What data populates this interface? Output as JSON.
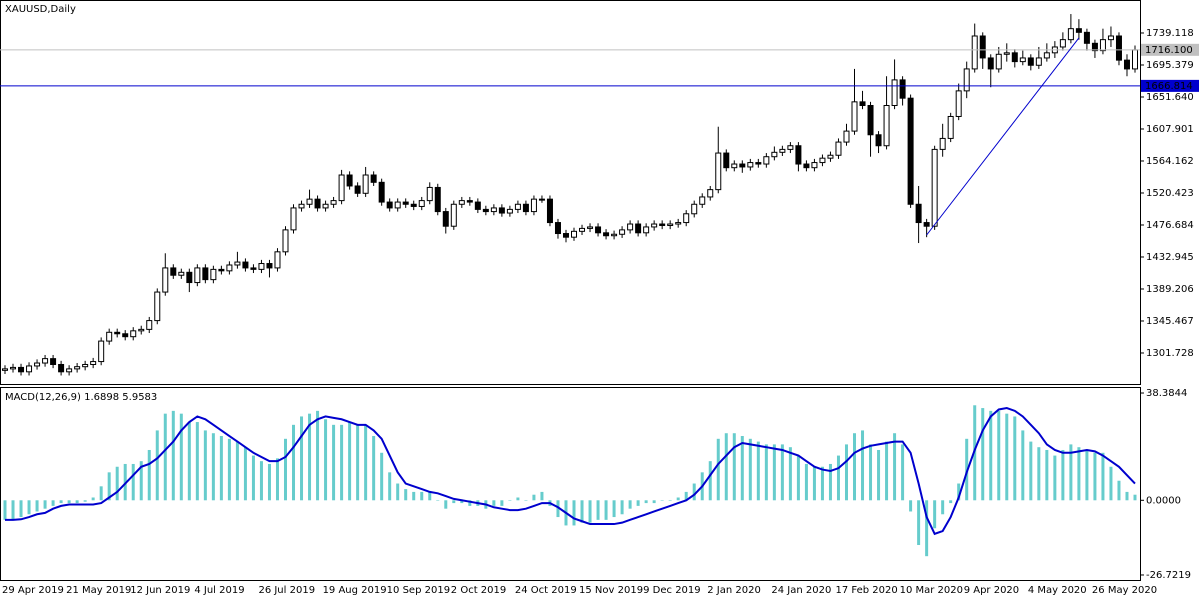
{
  "chart_data": [
    {
      "type": "candlestick",
      "title": "XAUUSD,Daily",
      "categories": [
        "29 Apr 2019",
        null,
        null,
        null,
        null,
        null,
        null,
        null,
        "21 May 2019",
        null,
        null,
        null,
        null,
        null,
        null,
        null,
        "12 Jun 2019",
        null,
        null,
        null,
        null,
        null,
        null,
        null,
        "4 Jul 2019",
        null,
        null,
        null,
        null,
        null,
        null,
        null,
        "26 Jul 2019",
        null,
        null,
        null,
        null,
        null,
        null,
        null,
        "19 Aug 2019",
        null,
        null,
        null,
        null,
        null,
        null,
        null,
        "10 Sep 2019",
        null,
        null,
        null,
        null,
        null,
        null,
        null,
        "2 Oct 2019",
        null,
        null,
        null,
        null,
        null,
        null,
        null,
        "24 Oct 2019",
        null,
        null,
        null,
        null,
        null,
        null,
        null,
        "15 Nov 2019",
        null,
        null,
        null,
        null,
        null,
        null,
        null,
        "9 Dec 2019",
        null,
        null,
        null,
        null,
        null,
        null,
        null,
        "2 Jan 2020",
        null,
        null,
        null,
        null,
        null,
        null,
        null,
        "24 Jan 2020",
        null,
        null,
        null,
        null,
        null,
        null,
        null,
        "17 Feb 2020",
        null,
        null,
        null,
        null,
        null,
        null,
        null,
        "10 Mar 2020",
        null,
        null,
        null,
        null,
        null,
        null,
        null,
        "9 Apr 2020",
        null,
        null,
        null,
        null,
        null,
        null,
        null,
        "4 May 2020",
        null,
        null,
        null,
        null,
        null,
        null,
        null,
        "26 May 2020",
        null,
        null,
        null,
        null,
        null
      ],
      "open": [
        1278,
        1280,
        1282,
        1276,
        1284,
        1288,
        1294,
        1286,
        1276,
        1280,
        1283,
        1286,
        1290,
        1318,
        1330,
        1328,
        1324,
        1332,
        1334,
        1346,
        1385,
        1418,
        1408,
        1412,
        1398,
        1418,
        1402,
        1416,
        1414,
        1422,
        1426,
        1418,
        1416,
        1424,
        1418,
        1440,
        1470,
        1500,
        1505,
        1512,
        1500,
        1505,
        1510,
        1545,
        1530,
        1520,
        1545,
        1535,
        1508,
        1500,
        1508,
        1505,
        1502,
        1510,
        1528,
        1495,
        1475,
        1505,
        1510,
        1508,
        1498,
        1495,
        1500,
        1493,
        1498,
        1505,
        1495,
        1512,
        1512,
        1480,
        1465,
        1460,
        1468,
        1472,
        1474,
        1466,
        1462,
        1464,
        1470,
        1478,
        1466,
        1474,
        1478,
        1476,
        1478,
        1480,
        1492,
        1505,
        1515,
        1525,
        1575,
        1555,
        1560,
        1556,
        1562,
        1560,
        1570,
        1576,
        1580,
        1585,
        1560,
        1555,
        1562,
        1568,
        1572,
        1590,
        1605,
        1645,
        1640,
        1600,
        1585,
        1640,
        1675,
        1650,
        1505,
        1480,
        1475,
        1580,
        1595,
        1625,
        1660,
        1690,
        1735,
        1705,
        1690,
        1710,
        1712,
        1700,
        1705,
        1695,
        1705,
        1712,
        1720,
        1730,
        1745,
        1740,
        1725,
        1715,
        1730,
        1735,
        1702,
        1690
      ],
      "high": [
        1285,
        1287,
        1287,
        1289,
        1293,
        1299,
        1299,
        1291,
        1285,
        1288,
        1291,
        1295,
        1323,
        1335,
        1335,
        1333,
        1337,
        1339,
        1351,
        1390,
        1438,
        1423,
        1417,
        1417,
        1423,
        1423,
        1421,
        1421,
        1427,
        1440,
        1431,
        1423,
        1429,
        1429,
        1445,
        1475,
        1505,
        1510,
        1525,
        1517,
        1510,
        1515,
        1552,
        1550,
        1535,
        1556,
        1550,
        1540,
        1513,
        1513,
        1513,
        1510,
        1515,
        1535,
        1533,
        1500,
        1510,
        1515,
        1515,
        1513,
        1503,
        1505,
        1505,
        1503,
        1510,
        1510,
        1517,
        1517,
        1517,
        1485,
        1470,
        1473,
        1477,
        1479,
        1479,
        1471,
        1469,
        1475,
        1483,
        1483,
        1479,
        1483,
        1483,
        1483,
        1485,
        1497,
        1510,
        1520,
        1530,
        1611,
        1580,
        1565,
        1565,
        1567,
        1567,
        1575,
        1584,
        1585,
        1590,
        1590,
        1565,
        1567,
        1573,
        1577,
        1595,
        1615,
        1690,
        1660,
        1645,
        1605,
        1680,
        1703,
        1680,
        1655,
        1530,
        1485,
        1585,
        1615,
        1630,
        1670,
        1700,
        1752,
        1740,
        1710,
        1720,
        1725,
        1717,
        1715,
        1710,
        1720,
        1725,
        1728,
        1740,
        1765,
        1758,
        1745,
        1730,
        1745,
        1748,
        1740,
        1710,
        1722
      ],
      "low": [
        1273,
        1275,
        1271,
        1271,
        1279,
        1283,
        1281,
        1271,
        1271,
        1275,
        1278,
        1281,
        1285,
        1313,
        1323,
        1319,
        1319,
        1327,
        1329,
        1341,
        1380,
        1403,
        1403,
        1385,
        1393,
        1397,
        1397,
        1409,
        1409,
        1417,
        1413,
        1411,
        1411,
        1405,
        1413,
        1435,
        1465,
        1495,
        1500,
        1495,
        1495,
        1500,
        1505,
        1525,
        1515,
        1515,
        1530,
        1503,
        1495,
        1495,
        1500,
        1497,
        1497,
        1505,
        1490,
        1465,
        1470,
        1500,
        1503,
        1493,
        1490,
        1490,
        1488,
        1488,
        1493,
        1490,
        1490,
        1507,
        1475,
        1458,
        1453,
        1455,
        1463,
        1467,
        1461,
        1457,
        1457,
        1459,
        1465,
        1461,
        1461,
        1469,
        1471,
        1471,
        1473,
        1475,
        1487,
        1500,
        1510,
        1520,
        1550,
        1550,
        1548,
        1551,
        1555,
        1555,
        1565,
        1571,
        1575,
        1550,
        1550,
        1550,
        1557,
        1563,
        1567,
        1585,
        1600,
        1635,
        1570,
        1575,
        1580,
        1635,
        1640,
        1500,
        1452,
        1460,
        1470,
        1570,
        1590,
        1620,
        1650,
        1685,
        1690,
        1665,
        1685,
        1700,
        1692,
        1695,
        1688,
        1690,
        1700,
        1705,
        1715,
        1725,
        1730,
        1715,
        1705,
        1710,
        1720,
        1695,
        1680,
        1685
      ],
      "close": [
        1280,
        1282,
        1276,
        1284,
        1288,
        1294,
        1286,
        1276,
        1280,
        1283,
        1286,
        1290,
        1318,
        1330,
        1328,
        1324,
        1332,
        1334,
        1346,
        1385,
        1418,
        1408,
        1412,
        1398,
        1418,
        1402,
        1416,
        1414,
        1422,
        1426,
        1418,
        1416,
        1424,
        1418,
        1440,
        1470,
        1500,
        1505,
        1512,
        1500,
        1505,
        1510,
        1545,
        1530,
        1520,
        1545,
        1535,
        1508,
        1500,
        1508,
        1505,
        1502,
        1510,
        1528,
        1495,
        1475,
        1505,
        1510,
        1508,
        1498,
        1495,
        1500,
        1493,
        1498,
        1505,
        1495,
        1512,
        1512,
        1480,
        1465,
        1460,
        1468,
        1472,
        1474,
        1466,
        1462,
        1464,
        1470,
        1478,
        1466,
        1474,
        1478,
        1476,
        1478,
        1480,
        1492,
        1505,
        1515,
        1525,
        1575,
        1555,
        1560,
        1556,
        1562,
        1560,
        1570,
        1576,
        1580,
        1585,
        1560,
        1555,
        1562,
        1568,
        1572,
        1590,
        1605,
        1645,
        1640,
        1600,
        1585,
        1640,
        1675,
        1650,
        1505,
        1480,
        1475,
        1580,
        1595,
        1625,
        1660,
        1690,
        1735,
        1705,
        1690,
        1710,
        1712,
        1700,
        1705,
        1695,
        1705,
        1712,
        1720,
        1730,
        1745,
        1740,
        1725,
        1715,
        1730,
        1735,
        1702,
        1690,
        1716
      ],
      "up_color": "#ffffff",
      "down_color": "#000000",
      "wick_color": "#000000",
      "ylim": [
        1260.7,
        1784.2
      ],
      "yticks": [
        1739.118,
        1695.379,
        {
          "value": 1651.64,
          "label": "1651.640"
        },
        1607.901,
        1564.162,
        1520.423,
        1476.684,
        1432.945,
        1389.206,
        1345.467,
        1301.728
      ],
      "levels": [
        {
          "value": 1716.1,
          "label": "1716.100",
          "color": "#c0c0c0"
        },
        {
          "value": 1666.814,
          "label": "1666.814",
          "color": "#0000cd"
        }
      ],
      "trendline": {
        "x": [
          115,
          134
        ],
        "y": [
          1463,
          1732.3
        ],
        "color": "#0000cd"
      }
    },
    {
      "type": "bar",
      "title": "MACD(12,26,9) 1.6898 5.9583",
      "ylim": [
        -28.52,
        40.18
      ],
      "yticks": [
        38.3844,
        {
          "value": 0,
          "label": "0.0000"
        },
        -26.7219
      ],
      "series": [
        {
          "type": "bar",
          "color": "#66cccc",
          "values": [
            -7,
            -7,
            -6,
            -5,
            -4,
            -3,
            -2,
            -1,
            -1,
            -1,
            -0.5,
            1,
            5,
            10,
            12,
            13,
            13,
            14,
            18,
            25,
            31,
            32,
            31,
            28,
            28,
            25,
            24,
            23,
            22,
            21,
            19,
            16,
            14,
            13,
            15,
            22,
            27,
            30,
            31,
            32,
            29,
            27,
            27,
            28,
            27,
            27,
            23,
            17,
            10,
            6,
            4,
            3,
            3,
            3,
            0,
            -3,
            -1,
            -1,
            -2,
            -2,
            -3,
            -2,
            -2,
            0,
            1,
            0,
            2,
            3,
            -2,
            -6,
            -9,
            -9,
            -8,
            -8,
            -7,
            -7,
            -6,
            -5,
            -3,
            -2,
            -1,
            -1,
            0,
            0,
            1,
            3,
            6,
            10,
            14,
            22,
            24,
            24,
            23,
            22,
            21,
            20,
            20,
            20,
            19,
            16,
            13,
            12,
            12,
            13,
            16,
            20,
            24,
            25,
            20,
            18,
            21,
            24,
            20,
            -4,
            -16,
            -20,
            -10,
            -5,
            -1,
            6,
            22,
            34,
            33,
            32,
            32,
            31,
            30,
            25,
            21,
            19,
            18,
            16,
            18,
            20,
            19,
            18,
            17,
            17,
            12,
            7,
            3,
            2
          ]
        },
        {
          "type": "line",
          "color": "#0000cd",
          "values": [
            -7,
            -7,
            -6.8,
            -6,
            -5,
            -4.5,
            -3,
            -2,
            -1.5,
            -1.5,
            -1.5,
            -1.5,
            -1,
            1,
            3,
            6,
            9,
            12,
            13,
            15,
            18,
            21,
            25,
            28,
            30,
            29,
            27,
            25,
            23,
            21,
            19,
            17,
            15.5,
            14,
            14,
            15.5,
            19,
            23,
            27,
            29,
            30,
            29.5,
            29,
            28,
            27,
            27,
            25,
            22,
            16,
            10,
            6,
            5,
            4,
            3,
            2.5,
            1.5,
            0.5,
            0,
            -0.5,
            -1,
            -1.5,
            -2.5,
            -3,
            -3.5,
            -3.5,
            -3,
            -2,
            -1,
            -1,
            -2.5,
            -4.5,
            -6.5,
            -7.5,
            -8.5,
            -8.5,
            -8.5,
            -8.5,
            -8,
            -7,
            -6,
            -5,
            -4,
            -3,
            -2,
            -1,
            0,
            2,
            5,
            9,
            13,
            16,
            19,
            20.5,
            20,
            19.5,
            19,
            18.5,
            18,
            17,
            16,
            14,
            12,
            11,
            10.5,
            11.5,
            14,
            17,
            18.5,
            19.5,
            20,
            20.5,
            21,
            21,
            17,
            6,
            -6,
            -12,
            -11,
            -6,
            1,
            10,
            18,
            25,
            30,
            32.5,
            33,
            32,
            30,
            27,
            24,
            20,
            18,
            17,
            17,
            17.5,
            18,
            17.5,
            16,
            14,
            12,
            9,
            6
          ]
        }
      ]
    }
  ]
}
